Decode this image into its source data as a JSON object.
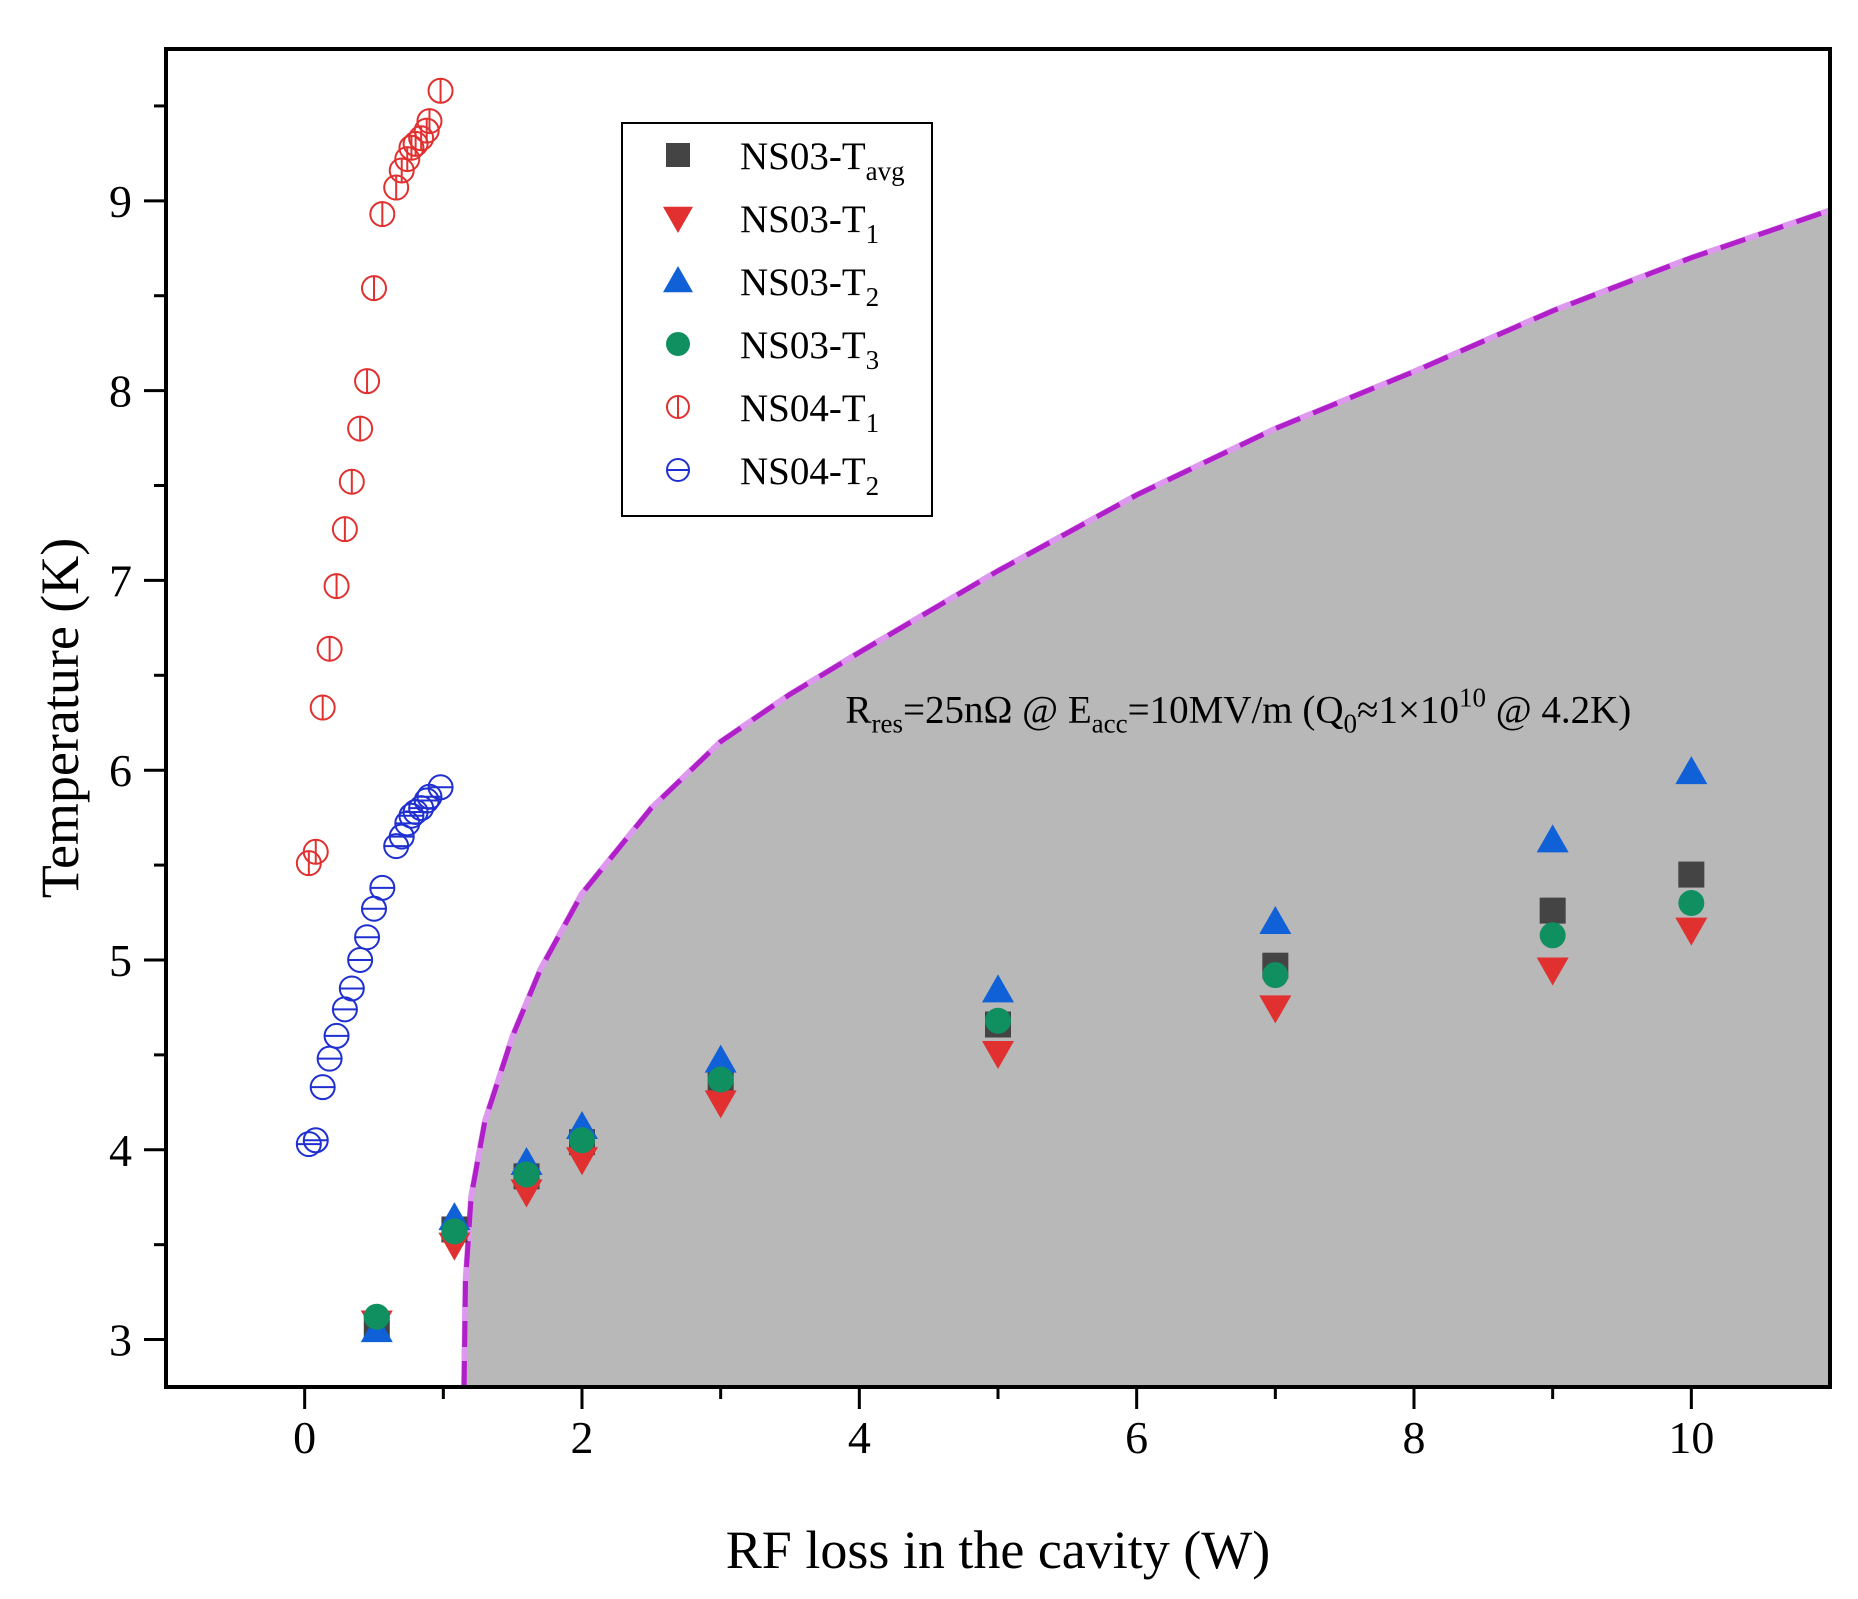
{
  "chart_data": {
    "type": "scatter",
    "xlabel": "RF loss in the cavity (W)",
    "ylabel": "Temperature (K)",
    "xlim": [
      -1,
      11
    ],
    "ylim": [
      2.75,
      9.8
    ],
    "xticks": [
      0,
      2,
      4,
      6,
      8,
      10
    ],
    "yticks": [
      3,
      4,
      5,
      6,
      7,
      8,
      9
    ],
    "annotation": {
      "parts": [
        "R",
        "res",
        "=25nΩ @ E",
        "acc",
        "=10MV/m (Q",
        "0",
        "≈1×10",
        "10",
        " @ 4.2K)"
      ],
      "x": 3.9,
      "y": 6.25
    },
    "shaded_region": {
      "color": "#b8b8b8",
      "boundary_color": "#b020c8",
      "boundary": [
        [
          1.15,
          2.75
        ],
        [
          1.16,
          3.3
        ],
        [
          1.2,
          3.75
        ],
        [
          1.3,
          4.15
        ],
        [
          1.5,
          4.6
        ],
        [
          1.7,
          4.95
        ],
        [
          2.0,
          5.35
        ],
        [
          2.5,
          5.8
        ],
        [
          3.0,
          6.15
        ],
        [
          3.5,
          6.4
        ],
        [
          4.0,
          6.62
        ],
        [
          5.0,
          7.05
        ],
        [
          6.0,
          7.45
        ],
        [
          7.0,
          7.8
        ],
        [
          8.0,
          8.1
        ],
        [
          9.0,
          8.42
        ],
        [
          10.0,
          8.7
        ],
        [
          11.0,
          8.95
        ]
      ]
    },
    "series": [
      {
        "name": "NS03-T_avg",
        "legend_main": "NS03-T",
        "legend_sub": "avg",
        "marker": "square",
        "filled": true,
        "color": "#444444",
        "points": [
          [
            0.52,
            3.08
          ],
          [
            1.08,
            3.58
          ],
          [
            1.6,
            3.86
          ],
          [
            2.0,
            4.04
          ],
          [
            3.0,
            4.36
          ],
          [
            5.0,
            4.66
          ],
          [
            7.0,
            4.97
          ],
          [
            9.0,
            5.26
          ],
          [
            10.0,
            5.45
          ]
        ]
      },
      {
        "name": "NS03-T_1",
        "legend_main": "NS03-T",
        "legend_sub": "1",
        "marker": "triangle-down",
        "filled": true,
        "color": "#e03030",
        "points": [
          [
            0.52,
            3.09
          ],
          [
            1.08,
            3.5
          ],
          [
            1.6,
            3.78
          ],
          [
            2.0,
            3.95
          ],
          [
            3.0,
            4.25
          ],
          [
            5.0,
            4.51
          ],
          [
            7.0,
            4.75
          ],
          [
            9.0,
            4.95
          ],
          [
            10.0,
            5.16
          ]
        ]
      },
      {
        "name": "NS03-T_2",
        "legend_main": "NS03-T",
        "legend_sub": "2",
        "marker": "triangle-up",
        "filled": true,
        "color": "#1060d8",
        "points": [
          [
            0.52,
            3.05
          ],
          [
            1.08,
            3.64
          ],
          [
            1.6,
            3.93
          ],
          [
            2.0,
            4.12
          ],
          [
            3.0,
            4.47
          ],
          [
            5.0,
            4.84
          ],
          [
            7.0,
            5.2
          ],
          [
            9.0,
            5.63
          ],
          [
            10.0,
            5.99
          ]
        ]
      },
      {
        "name": "NS03-T_3",
        "legend_main": "NS03-T",
        "legend_sub": "3",
        "marker": "circle",
        "filled": true,
        "color": "#109060",
        "points": [
          [
            0.52,
            3.12
          ],
          [
            1.08,
            3.57
          ],
          [
            1.6,
            3.87
          ],
          [
            2.0,
            4.05
          ],
          [
            3.0,
            4.37
          ],
          [
            5.0,
            4.68
          ],
          [
            7.0,
            4.92
          ],
          [
            9.0,
            5.13
          ],
          [
            10.0,
            5.3
          ]
        ]
      },
      {
        "name": "NS04-T_1",
        "legend_main": "NS04-T",
        "legend_sub": "1",
        "marker": "circle-bar",
        "filled": false,
        "color": "#e03030",
        "points": [
          [
            0.03,
            5.51
          ],
          [
            0.08,
            5.57
          ],
          [
            0.13,
            6.33
          ],
          [
            0.18,
            6.64
          ],
          [
            0.23,
            6.97
          ],
          [
            0.29,
            7.27
          ],
          [
            0.34,
            7.52
          ],
          [
            0.4,
            7.8
          ],
          [
            0.45,
            8.05
          ],
          [
            0.5,
            8.54
          ],
          [
            0.56,
            8.93
          ],
          [
            0.66,
            9.07
          ],
          [
            0.7,
            9.16
          ],
          [
            0.74,
            9.22
          ],
          [
            0.77,
            9.28
          ],
          [
            0.8,
            9.3
          ],
          [
            0.84,
            9.33
          ],
          [
            0.88,
            9.37
          ],
          [
            0.9,
            9.42
          ],
          [
            0.98,
            9.58
          ]
        ]
      },
      {
        "name": "NS04-T_2",
        "legend_main": "NS04-T",
        "legend_sub": "2",
        "marker": "circle-bar",
        "filled": false,
        "color": "#2030d0",
        "points": [
          [
            0.03,
            4.03
          ],
          [
            0.08,
            4.05
          ],
          [
            0.13,
            4.33
          ],
          [
            0.18,
            4.48
          ],
          [
            0.23,
            4.6
          ],
          [
            0.29,
            4.74
          ],
          [
            0.34,
            4.85
          ],
          [
            0.4,
            5.0
          ],
          [
            0.45,
            5.12
          ],
          [
            0.5,
            5.27
          ],
          [
            0.56,
            5.38
          ],
          [
            0.66,
            5.6
          ],
          [
            0.7,
            5.65
          ],
          [
            0.74,
            5.72
          ],
          [
            0.77,
            5.76
          ],
          [
            0.8,
            5.78
          ],
          [
            0.84,
            5.8
          ],
          [
            0.88,
            5.84
          ],
          [
            0.9,
            5.86
          ],
          [
            0.98,
            5.91
          ]
        ]
      }
    ]
  }
}
